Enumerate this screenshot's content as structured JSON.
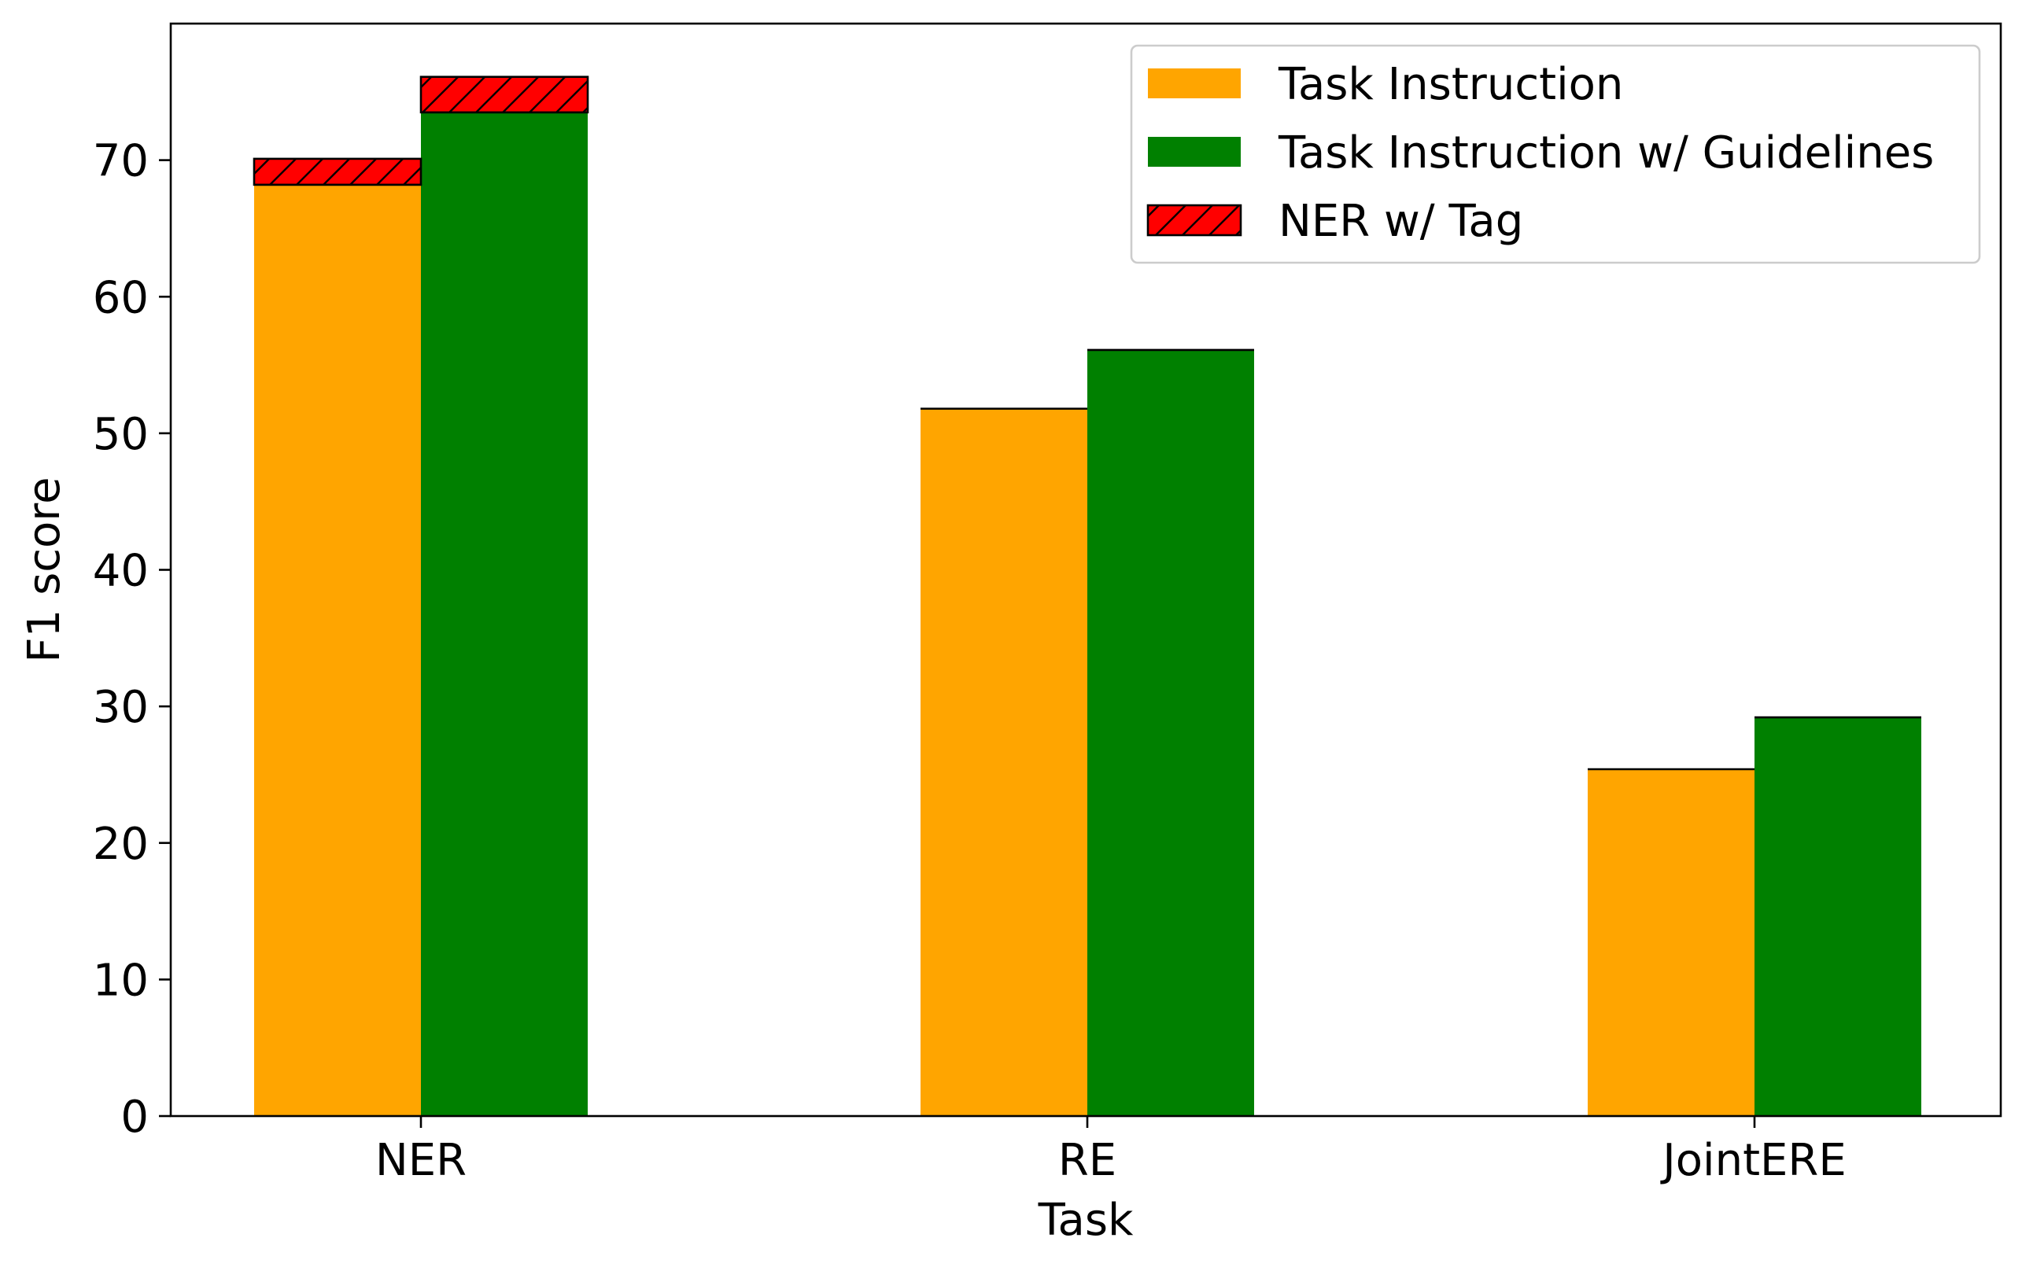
{
  "chart_data": {
    "type": "bar",
    "title": "",
    "xlabel": "Task",
    "ylabel": "F1 score",
    "categories": [
      "NER",
      "RE",
      "JointERE"
    ],
    "ylim": [
      0,
      80
    ],
    "yticks": [
      0,
      10,
      20,
      30,
      40,
      50,
      60,
      70
    ],
    "grid": false,
    "legend_position": "top-right",
    "series": [
      {
        "name": "Task Instruction",
        "color": "#ffa500",
        "values": [
          68.2,
          51.8,
          25.4
        ]
      },
      {
        "name": "Task Instruction w/ Guidelines",
        "color": "#008000",
        "values": [
          73.5,
          56.1,
          29.2
        ]
      }
    ],
    "stacked_extra": {
      "name": "NER w/ Tag",
      "color": "#ff0000",
      "hatch": "forward-diagonal",
      "category": "NER",
      "values": [
        {
          "series": "Task Instruction",
          "from": 68.2,
          "to": 70.1
        },
        {
          "series": "Task Instruction w/ Guidelines",
          "from": 73.5,
          "to": 76.1
        }
      ]
    }
  }
}
